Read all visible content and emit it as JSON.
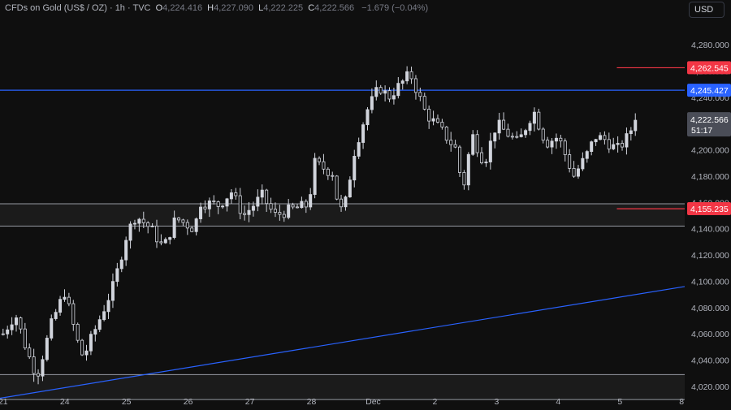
{
  "header": {
    "symbol": "CFDs on Gold (US$ / OZ) · 1h · TVC",
    "open_label": "O",
    "open": "4,224.416",
    "high_label": "H",
    "high": "4,227.090",
    "low_label": "L",
    "low": "4,222.225",
    "close_label": "C",
    "close": "4,222.566",
    "change": "−1.679 (−0.04%)"
  },
  "currency": "USD",
  "colors": {
    "background": "#0f0f0f",
    "candle": "#d1d4dc",
    "resistance_line": "#2962ff",
    "trend_line": "#2962ff",
    "target_line": "#f23645",
    "zone_border": "#9598a1",
    "price_badge": "#4a4d57"
  },
  "chart_data": {
    "type": "candlestick",
    "instrument": "CFDs on Gold (US$ / OZ)",
    "timeframe": "1h",
    "ylim": [
      4015,
      4298
    ],
    "y_ticks": [
      "4,280.000",
      "4,260.000",
      "4,240.000",
      "4,200.000",
      "4,180.000",
      "4,160.000",
      "4,140.000",
      "4,120.000",
      "4,100.000",
      "4,080.000",
      "4,060.000",
      "4,040.000",
      "4,020.000"
    ],
    "y_tick_values": [
      4280,
      4260,
      4240,
      4200,
      4180,
      4160,
      4140,
      4120,
      4100,
      4080,
      4060,
      4040,
      4020
    ],
    "x_tick_labels": [
      "21",
      "24",
      "25",
      "26",
      "27",
      "28",
      "Dec",
      "2",
      "3",
      "4",
      "5",
      "8"
    ],
    "x_tick_sessions": [
      0,
      1,
      2,
      3,
      4,
      5,
      6,
      7,
      8,
      9,
      10,
      11
    ],
    "x_session_range": [
      -0.05,
      11.05
    ],
    "price_badges": [
      {
        "label": "4,262.545",
        "value": 4262.545,
        "color": "#f23645"
      },
      {
        "label": "4,245.427",
        "value": 4245.427,
        "color": "#2962ff"
      },
      {
        "label": "4,155.235",
        "value": 4155.235,
        "color": "#f23645"
      }
    ],
    "last_price": {
      "label": "4,222.566",
      "countdown": "51:17",
      "value": 4222.566
    },
    "horizontal_lines": [
      {
        "name": "resistance",
        "value": 4245.4,
        "color": "#2962ff"
      },
      {
        "name": "target-upper",
        "value": 4262.5,
        "color": "#f23645",
        "from_session": 9.95
      },
      {
        "name": "target-lower",
        "value": 4155.2,
        "color": "#f23645",
        "from_session": 9.95
      }
    ],
    "zones": [
      {
        "name": "support-zone",
        "top": 4159,
        "bottom": 4142
      },
      {
        "name": "lower-zone",
        "top": 4029,
        "bottom": 4010
      }
    ],
    "trendline": {
      "from": {
        "session": -0.05,
        "price": 4011
      },
      "to": {
        "session": 11.05,
        "price": 4096
      }
    },
    "candle_path": [
      {
        "s": 0.0,
        "p": 4060
      },
      {
        "s": 0.2,
        "p": 4075
      },
      {
        "s": 0.4,
        "p": 4045
      },
      {
        "s": 0.55,
        "p": 4028
      },
      {
        "s": 0.8,
        "p": 4070
      },
      {
        "s": 1.0,
        "p": 4092
      },
      {
        "s": 1.2,
        "p": 4055
      },
      {
        "s": 1.3,
        "p": 4042
      },
      {
        "s": 1.6,
        "p": 4075
      },
      {
        "s": 1.8,
        "p": 4098
      },
      {
        "s": 2.0,
        "p": 4135
      },
      {
        "s": 2.15,
        "p": 4150
      },
      {
        "s": 2.4,
        "p": 4140
      },
      {
        "s": 2.6,
        "p": 4125
      },
      {
        "s": 2.8,
        "p": 4148
      },
      {
        "s": 3.1,
        "p": 4140
      },
      {
        "s": 3.2,
        "p": 4160
      },
      {
        "s": 3.5,
        "p": 4158
      },
      {
        "s": 3.7,
        "p": 4168
      },
      {
        "s": 3.9,
        "p": 4150
      },
      {
        "s": 4.2,
        "p": 4165
      },
      {
        "s": 4.4,
        "p": 4150
      },
      {
        "s": 4.7,
        "p": 4155
      },
      {
        "s": 4.95,
        "p": 4158
      },
      {
        "s": 5.05,
        "p": 4190
      },
      {
        "s": 5.35,
        "p": 4182
      },
      {
        "s": 5.45,
        "p": 4152
      },
      {
        "s": 5.55,
        "p": 4160
      },
      {
        "s": 5.7,
        "p": 4200
      },
      {
        "s": 5.9,
        "p": 4230
      },
      {
        "s": 6.1,
        "p": 4248
      },
      {
        "s": 6.25,
        "p": 4240
      },
      {
        "s": 6.6,
        "p": 4258
      },
      {
        "s": 6.85,
        "p": 4228
      },
      {
        "s": 7.1,
        "p": 4215
      },
      {
        "s": 7.35,
        "p": 4200
      },
      {
        "s": 7.45,
        "p": 4168
      },
      {
        "s": 7.6,
        "p": 4212
      },
      {
        "s": 7.8,
        "p": 4190
      },
      {
        "s": 8.0,
        "p": 4220
      },
      {
        "s": 8.35,
        "p": 4205
      },
      {
        "s": 8.6,
        "p": 4230
      },
      {
        "s": 8.8,
        "p": 4205
      },
      {
        "s": 9.0,
        "p": 4210
      },
      {
        "s": 9.25,
        "p": 4180
      },
      {
        "s": 9.45,
        "p": 4195
      },
      {
        "s": 9.6,
        "p": 4210
      },
      {
        "s": 9.75,
        "p": 4208
      },
      {
        "s": 9.95,
        "p": 4200
      },
      {
        "s": 10.1,
        "p": 4208
      },
      {
        "s": 10.25,
        "p": 4222
      }
    ],
    "candle_count": 145
  }
}
